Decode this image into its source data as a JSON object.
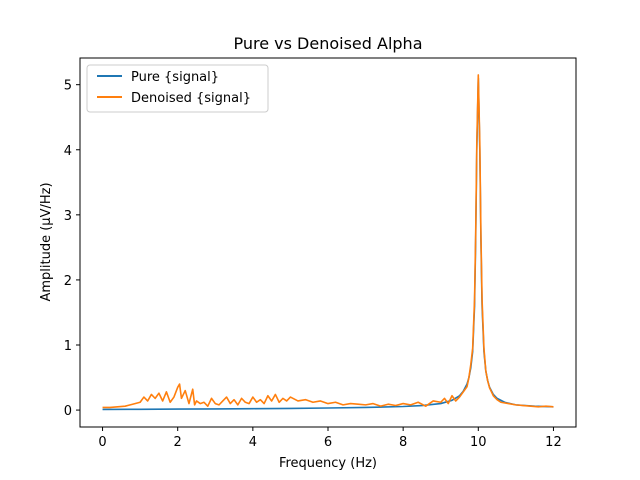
{
  "chart_data": {
    "type": "line",
    "title": "Pure vs Denoised Alpha",
    "xlabel": "Frequency (Hz)",
    "ylabel": "Amplitude (μV/Hz)",
    "xlim": [
      -0.6,
      12.6
    ],
    "ylim": [
      -0.26,
      5.41
    ],
    "xticks": [
      0,
      2,
      4,
      6,
      8,
      10,
      12
    ],
    "yticks": [
      0,
      1,
      2,
      3,
      4,
      5
    ],
    "grid": false,
    "legend_position": "upper left",
    "series": [
      {
        "name": "Pure {signal}",
        "color": "#1f77b4",
        "x": [
          0,
          1,
          2,
          3,
          4,
          5,
          6,
          7,
          8,
          8.5,
          9,
          9.3,
          9.5,
          9.6,
          9.7,
          9.75,
          9.8,
          9.85,
          9.9,
          9.93,
          9.96,
          10.0,
          10.04,
          10.07,
          10.1,
          10.15,
          10.2,
          10.25,
          10.3,
          10.4,
          10.5,
          10.7,
          11,
          11.5,
          12
        ],
        "y": [
          0.01,
          0.012,
          0.015,
          0.018,
          0.022,
          0.026,
          0.032,
          0.04,
          0.055,
          0.07,
          0.1,
          0.15,
          0.22,
          0.29,
          0.4,
          0.5,
          0.65,
          0.9,
          1.6,
          2.6,
          4.0,
          5.1,
          4.0,
          2.6,
          1.6,
          0.9,
          0.6,
          0.45,
          0.35,
          0.24,
          0.18,
          0.12,
          0.08,
          0.06,
          0.05
        ]
      },
      {
        "name": "Denoised {signal}",
        "color": "#ff7f0e",
        "x": [
          0,
          0.2,
          0.4,
          0.6,
          0.8,
          1.0,
          1.1,
          1.2,
          1.3,
          1.4,
          1.5,
          1.6,
          1.7,
          1.8,
          1.9,
          2.0,
          2.05,
          2.1,
          2.2,
          2.3,
          2.4,
          2.45,
          2.5,
          2.6,
          2.7,
          2.8,
          2.9,
          3.0,
          3.1,
          3.2,
          3.3,
          3.4,
          3.5,
          3.6,
          3.7,
          3.8,
          3.9,
          4.0,
          4.1,
          4.2,
          4.3,
          4.4,
          4.5,
          4.6,
          4.7,
          4.8,
          4.9,
          5.0,
          5.2,
          5.4,
          5.6,
          5.8,
          6.0,
          6.2,
          6.4,
          6.6,
          6.8,
          7.0,
          7.2,
          7.4,
          7.6,
          7.8,
          8.0,
          8.2,
          8.4,
          8.6,
          8.8,
          9.0,
          9.1,
          9.2,
          9.3,
          9.4,
          9.5,
          9.6,
          9.7,
          9.75,
          9.8,
          9.85,
          9.9,
          9.93,
          9.96,
          10.0,
          10.04,
          10.07,
          10.1,
          10.15,
          10.2,
          10.25,
          10.3,
          10.4,
          10.5,
          10.6,
          10.8,
          11.0,
          11.2,
          11.4,
          11.6,
          11.8,
          12.0
        ],
        "y": [
          0.04,
          0.04,
          0.05,
          0.06,
          0.09,
          0.12,
          0.2,
          0.14,
          0.24,
          0.18,
          0.26,
          0.14,
          0.28,
          0.12,
          0.2,
          0.35,
          0.4,
          0.18,
          0.3,
          0.1,
          0.32,
          0.08,
          0.14,
          0.1,
          0.12,
          0.06,
          0.18,
          0.1,
          0.08,
          0.14,
          0.2,
          0.1,
          0.16,
          0.08,
          0.18,
          0.12,
          0.1,
          0.2,
          0.12,
          0.16,
          0.1,
          0.22,
          0.14,
          0.24,
          0.12,
          0.18,
          0.14,
          0.2,
          0.14,
          0.16,
          0.12,
          0.14,
          0.1,
          0.12,
          0.08,
          0.1,
          0.09,
          0.08,
          0.1,
          0.06,
          0.09,
          0.07,
          0.1,
          0.08,
          0.12,
          0.06,
          0.14,
          0.12,
          0.18,
          0.1,
          0.22,
          0.14,
          0.2,
          0.28,
          0.36,
          0.5,
          0.7,
          0.95,
          1.7,
          2.7,
          4.1,
          5.15,
          4.1,
          2.7,
          1.7,
          0.95,
          0.6,
          0.45,
          0.34,
          0.22,
          0.16,
          0.12,
          0.1,
          0.08,
          0.07,
          0.06,
          0.05,
          0.06,
          0.05
        ]
      }
    ]
  }
}
